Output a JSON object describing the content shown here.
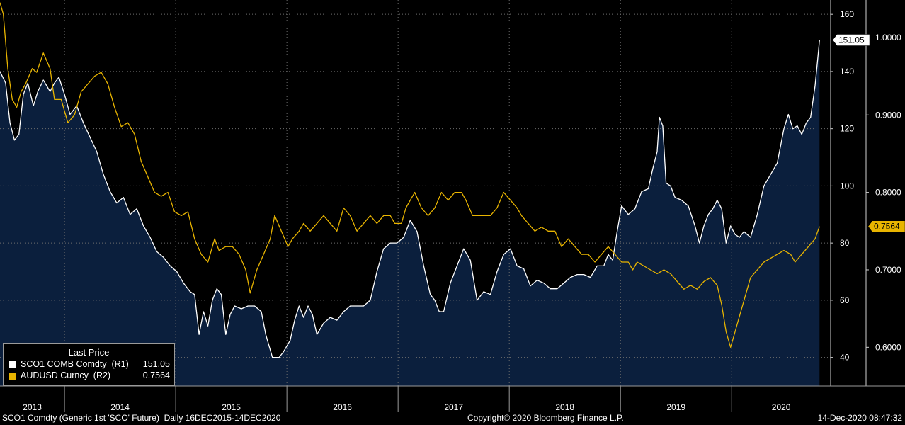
{
  "chart_data": {
    "type": "line",
    "x_axis": {
      "labels": [
        "2013",
        "2014",
        "2015",
        "2016",
        "2017",
        "2018",
        "2019",
        "2020"
      ]
    },
    "y_axis_right1": {
      "range": [
        30,
        165
      ],
      "ticks": [
        40,
        60,
        80,
        100,
        120,
        140,
        160
      ],
      "tick_labels": [
        "40",
        "60",
        "80",
        "100",
        "120",
        "140",
        "160"
      ]
    },
    "y_axis_right2": {
      "range": [
        0.55,
        1.0484
      ],
      "ticks": [
        0.6,
        0.7,
        0.8,
        0.9,
        1.0
      ],
      "tick_labels": [
        "0.6000",
        "0.7000",
        "0.8000",
        "0.9000",
        "1.0000"
      ]
    },
    "grid": true,
    "series": [
      {
        "name": "SCO1 COMB Comdty (R1)",
        "axis": "right1",
        "color": "#ffffff",
        "fill": "#0b1f3d",
        "last_value_label": "151.05",
        "points": [
          [
            2012.97,
            140
          ],
          [
            2013.02,
            136
          ],
          [
            2013.06,
            122
          ],
          [
            2013.1,
            116
          ],
          [
            2013.14,
            118
          ],
          [
            2013.18,
            132
          ],
          [
            2013.22,
            136
          ],
          [
            2013.27,
            128
          ],
          [
            2013.31,
            133
          ],
          [
            2013.36,
            137
          ],
          [
            2013.42,
            133
          ],
          [
            2013.46,
            136
          ],
          [
            2013.5,
            138
          ],
          [
            2013.55,
            132
          ],
          [
            2013.6,
            125
          ],
          [
            2013.66,
            128
          ],
          [
            2013.72,
            122
          ],
          [
            2013.78,
            117
          ],
          [
            2013.84,
            112
          ],
          [
            2013.9,
            104
          ],
          [
            2013.96,
            98
          ],
          [
            2014.02,
            94
          ],
          [
            2014.08,
            96
          ],
          [
            2014.14,
            90
          ],
          [
            2014.2,
            92
          ],
          [
            2014.26,
            86
          ],
          [
            2014.32,
            82
          ],
          [
            2014.38,
            77
          ],
          [
            2014.44,
            75
          ],
          [
            2014.5,
            72
          ],
          [
            2014.56,
            70
          ],
          [
            2014.62,
            66
          ],
          [
            2014.68,
            63
          ],
          [
            2014.72,
            62
          ],
          [
            2014.76,
            48
          ],
          [
            2014.8,
            56
          ],
          [
            2014.84,
            51
          ],
          [
            2014.88,
            60
          ],
          [
            2014.92,
            64
          ],
          [
            2014.96,
            62
          ],
          [
            2015.0,
            48
          ],
          [
            2015.04,
            55
          ],
          [
            2015.08,
            58
          ],
          [
            2015.14,
            57
          ],
          [
            2015.2,
            58
          ],
          [
            2015.26,
            58
          ],
          [
            2015.32,
            56
          ],
          [
            2015.36,
            48
          ],
          [
            2015.42,
            40
          ],
          [
            2015.48,
            40
          ],
          [
            2015.52,
            42
          ],
          [
            2015.58,
            46
          ],
          [
            2015.62,
            53
          ],
          [
            2015.66,
            58
          ],
          [
            2015.7,
            54
          ],
          [
            2015.74,
            58
          ],
          [
            2015.78,
            55
          ],
          [
            2015.82,
            48
          ],
          [
            2015.88,
            52
          ],
          [
            2015.94,
            54
          ],
          [
            2016.0,
            53
          ],
          [
            2016.06,
            56
          ],
          [
            2016.12,
            58
          ],
          [
            2016.18,
            58
          ],
          [
            2016.24,
            58
          ],
          [
            2016.3,
            60
          ],
          [
            2016.36,
            70
          ],
          [
            2016.42,
            78
          ],
          [
            2016.48,
            80
          ],
          [
            2016.54,
            80
          ],
          [
            2016.6,
            82
          ],
          [
            2016.66,
            88
          ],
          [
            2016.72,
            84
          ],
          [
            2016.78,
            72
          ],
          [
            2016.84,
            62
          ],
          [
            2016.88,
            60
          ],
          [
            2016.92,
            56
          ],
          [
            2016.96,
            56
          ],
          [
            2017.02,
            66
          ],
          [
            2017.08,
            72
          ],
          [
            2017.14,
            78
          ],
          [
            2017.2,
            74
          ],
          [
            2017.26,
            60
          ],
          [
            2017.32,
            63
          ],
          [
            2017.38,
            62
          ],
          [
            2017.44,
            70
          ],
          [
            2017.5,
            76
          ],
          [
            2017.56,
            78
          ],
          [
            2017.62,
            72
          ],
          [
            2017.68,
            71
          ],
          [
            2017.74,
            65
          ],
          [
            2017.8,
            67
          ],
          [
            2017.86,
            66
          ],
          [
            2017.92,
            64
          ],
          [
            2017.98,
            64
          ],
          [
            2018.04,
            66
          ],
          [
            2018.1,
            68
          ],
          [
            2018.16,
            69
          ],
          [
            2018.22,
            69
          ],
          [
            2018.28,
            68
          ],
          [
            2018.34,
            72
          ],
          [
            2018.4,
            72
          ],
          [
            2018.44,
            76
          ],
          [
            2018.48,
            74
          ],
          [
            2018.52,
            84
          ],
          [
            2018.56,
            93
          ],
          [
            2018.62,
            90
          ],
          [
            2018.68,
            92
          ],
          [
            2018.74,
            98
          ],
          [
            2018.8,
            99
          ],
          [
            2018.84,
            106
          ],
          [
            2018.88,
            112
          ],
          [
            2018.9,
            124
          ],
          [
            2018.93,
            121
          ],
          [
            2018.96,
            101
          ],
          [
            2019.0,
            100
          ],
          [
            2019.04,
            96
          ],
          [
            2019.1,
            95
          ],
          [
            2019.16,
            93
          ],
          [
            2019.22,
            86
          ],
          [
            2019.26,
            80
          ],
          [
            2019.3,
            86
          ],
          [
            2019.34,
            90
          ],
          [
            2019.38,
            92
          ],
          [
            2019.42,
            95
          ],
          [
            2019.46,
            92
          ],
          [
            2019.5,
            80
          ],
          [
            2019.54,
            86
          ],
          [
            2019.58,
            83
          ],
          [
            2019.62,
            82
          ],
          [
            2019.66,
            84
          ],
          [
            2019.72,
            82
          ],
          [
            2019.78,
            90
          ],
          [
            2019.84,
            100
          ],
          [
            2019.9,
            104
          ],
          [
            2019.96,
            108
          ],
          [
            2020.02,
            120
          ],
          [
            2020.06,
            125
          ],
          [
            2020.1,
            120
          ],
          [
            2020.14,
            121
          ],
          [
            2020.18,
            118
          ],
          [
            2020.22,
            122
          ],
          [
            2020.26,
            124
          ],
          [
            2020.3,
            135
          ],
          [
            2020.32,
            143
          ],
          [
            2020.34,
            151
          ]
        ]
      },
      {
        "name": "AUDUSD Curncy (R2)",
        "axis": "right2",
        "color": "#e8b400",
        "last_value_label": "0.7564",
        "points": [
          [
            2012.97,
            1.045
          ],
          [
            2013.0,
            1.03
          ],
          [
            2013.04,
            0.96
          ],
          [
            2013.08,
            0.92
          ],
          [
            2013.12,
            0.91
          ],
          [
            2013.16,
            0.93
          ],
          [
            2013.2,
            0.94
          ],
          [
            2013.26,
            0.96
          ],
          [
            2013.3,
            0.955
          ],
          [
            2013.36,
            0.98
          ],
          [
            2013.42,
            0.96
          ],
          [
            2013.46,
            0.92
          ],
          [
            2013.52,
            0.92
          ],
          [
            2013.58,
            0.89
          ],
          [
            2013.64,
            0.9
          ],
          [
            2013.7,
            0.93
          ],
          [
            2013.76,
            0.94
          ],
          [
            2013.82,
            0.95
          ],
          [
            2013.88,
            0.955
          ],
          [
            2013.94,
            0.94
          ],
          [
            2014.0,
            0.91
          ],
          [
            2014.06,
            0.885
          ],
          [
            2014.12,
            0.89
          ],
          [
            2014.18,
            0.875
          ],
          [
            2014.24,
            0.84
          ],
          [
            2014.3,
            0.82
          ],
          [
            2014.36,
            0.8
          ],
          [
            2014.42,
            0.795
          ],
          [
            2014.48,
            0.8
          ],
          [
            2014.54,
            0.775
          ],
          [
            2014.6,
            0.77
          ],
          [
            2014.66,
            0.775
          ],
          [
            2014.72,
            0.74
          ],
          [
            2014.78,
            0.72
          ],
          [
            2014.84,
            0.71
          ],
          [
            2014.9,
            0.74
          ],
          [
            2014.94,
            0.725
          ],
          [
            2015.0,
            0.73
          ],
          [
            2015.06,
            0.73
          ],
          [
            2015.12,
            0.72
          ],
          [
            2015.18,
            0.7
          ],
          [
            2015.22,
            0.67
          ],
          [
            2015.28,
            0.7
          ],
          [
            2015.34,
            0.72
          ],
          [
            2015.4,
            0.74
          ],
          [
            2015.44,
            0.77
          ],
          [
            2015.5,
            0.75
          ],
          [
            2015.56,
            0.73
          ],
          [
            2015.6,
            0.74
          ],
          [
            2015.66,
            0.75
          ],
          [
            2015.7,
            0.76
          ],
          [
            2015.76,
            0.75
          ],
          [
            2015.82,
            0.76
          ],
          [
            2015.88,
            0.77
          ],
          [
            2015.94,
            0.76
          ],
          [
            2016.0,
            0.75
          ],
          [
            2016.06,
            0.78
          ],
          [
            2016.12,
            0.77
          ],
          [
            2016.18,
            0.75
          ],
          [
            2016.24,
            0.76
          ],
          [
            2016.3,
            0.77
          ],
          [
            2016.36,
            0.76
          ],
          [
            2016.42,
            0.77
          ],
          [
            2016.48,
            0.77
          ],
          [
            2016.52,
            0.76
          ],
          [
            2016.58,
            0.76
          ],
          [
            2016.62,
            0.78
          ],
          [
            2016.66,
            0.79
          ],
          [
            2016.7,
            0.8
          ],
          [
            2016.76,
            0.78
          ],
          [
            2016.82,
            0.77
          ],
          [
            2016.88,
            0.78
          ],
          [
            2016.94,
            0.8
          ],
          [
            2017.0,
            0.79
          ],
          [
            2017.06,
            0.8
          ],
          [
            2017.12,
            0.8
          ],
          [
            2017.16,
            0.79
          ],
          [
            2017.22,
            0.77
          ],
          [
            2017.28,
            0.77
          ],
          [
            2017.32,
            0.77
          ],
          [
            2017.38,
            0.77
          ],
          [
            2017.44,
            0.78
          ],
          [
            2017.5,
            0.8
          ],
          [
            2017.56,
            0.79
          ],
          [
            2017.62,
            0.78
          ],
          [
            2017.66,
            0.77
          ],
          [
            2017.72,
            0.76
          ],
          [
            2017.78,
            0.75
          ],
          [
            2017.84,
            0.755
          ],
          [
            2017.9,
            0.75
          ],
          [
            2017.96,
            0.75
          ],
          [
            2018.02,
            0.73
          ],
          [
            2018.08,
            0.74
          ],
          [
            2018.14,
            0.73
          ],
          [
            2018.2,
            0.72
          ],
          [
            2018.26,
            0.72
          ],
          [
            2018.32,
            0.71
          ],
          [
            2018.38,
            0.72
          ],
          [
            2018.44,
            0.73
          ],
          [
            2018.5,
            0.72
          ],
          [
            2018.56,
            0.71
          ],
          [
            2018.62,
            0.71
          ],
          [
            2018.66,
            0.7
          ],
          [
            2018.7,
            0.71
          ],
          [
            2018.76,
            0.705
          ],
          [
            2018.82,
            0.7
          ],
          [
            2018.88,
            0.695
          ],
          [
            2018.94,
            0.7
          ],
          [
            2019.0,
            0.695
          ],
          [
            2019.06,
            0.685
          ],
          [
            2019.12,
            0.675
          ],
          [
            2019.18,
            0.68
          ],
          [
            2019.24,
            0.675
          ],
          [
            2019.3,
            0.685
          ],
          [
            2019.36,
            0.69
          ],
          [
            2019.42,
            0.68
          ],
          [
            2019.46,
            0.655
          ],
          [
            2019.5,
            0.62
          ],
          [
            2019.54,
            0.6
          ],
          [
            2019.58,
            0.62
          ],
          [
            2019.62,
            0.64
          ],
          [
            2019.66,
            0.66
          ],
          [
            2019.72,
            0.69
          ],
          [
            2019.78,
            0.7
          ],
          [
            2019.84,
            0.71
          ],
          [
            2019.9,
            0.715
          ],
          [
            2019.96,
            0.72
          ],
          [
            2020.02,
            0.725
          ],
          [
            2020.08,
            0.72
          ],
          [
            2020.12,
            0.71
          ],
          [
            2020.18,
            0.72
          ],
          [
            2020.24,
            0.73
          ],
          [
            2020.3,
            0.74
          ],
          [
            2020.34,
            0.756
          ]
        ]
      }
    ]
  },
  "legend": {
    "title": "Last Price",
    "items": [
      {
        "name": "SCO1 COMB Comdty  (R1)",
        "value": "151.05",
        "color": "#ffffff"
      },
      {
        "name": "AUDUSD Curncy  (R2)",
        "value": "0.7564",
        "color": "#e8b400"
      }
    ]
  },
  "footer": {
    "left": "SCO1 Comdty (Generic 1st 'SCO' Future)  Daily 16DEC2015-14DEC2020",
    "center": "Copyright© 2020 Bloomberg Finance L.P.",
    "right": "14-Dec-2020 08:47:32"
  }
}
